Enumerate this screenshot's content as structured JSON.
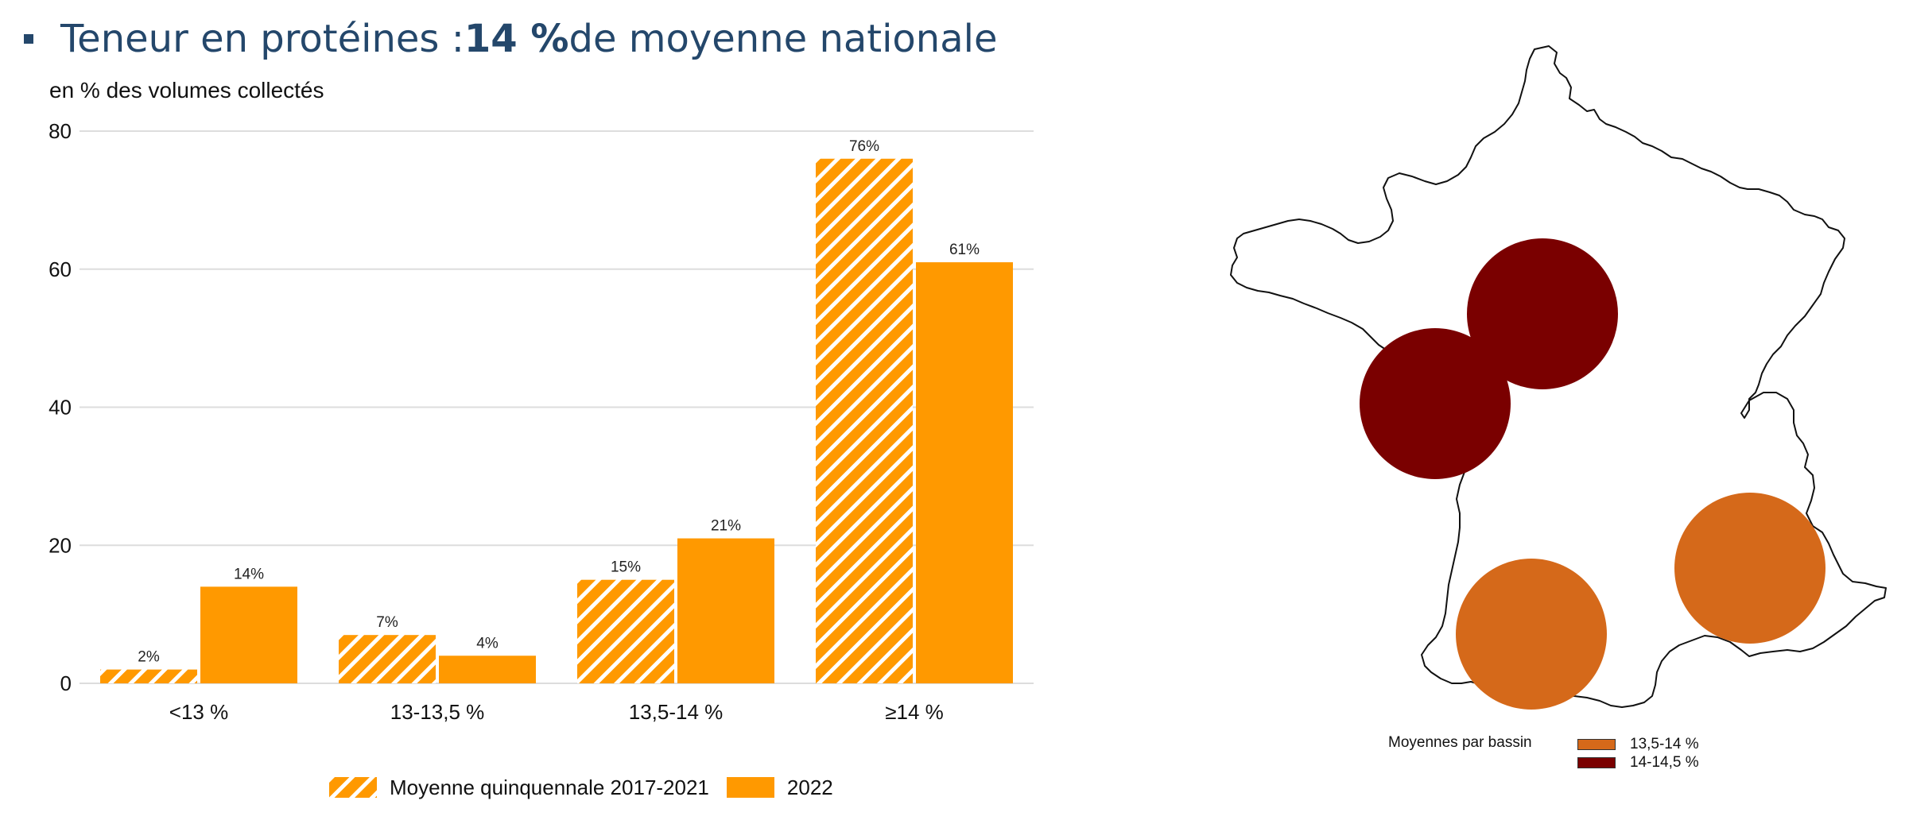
{
  "headline": {
    "prefix": "Teneur en protéines : ",
    "bold": "14 %",
    "suffix": " de moyenne nationale"
  },
  "colors": {
    "headline": "#24476b",
    "bar": "#ff9900",
    "grid": "#dddddd",
    "circle_dark": "#7a0000",
    "circle_orange": "#d5691a"
  },
  "chart_data": {
    "type": "bar",
    "title": "",
    "ylabel": "en % des volumes collectés",
    "xlabel": "",
    "ylim": [
      0,
      80
    ],
    "yticks": [
      0,
      20,
      40,
      60,
      80
    ],
    "categories": [
      "<13 %",
      "13-13,5 %",
      "13,5-14 %",
      "≥14 %"
    ],
    "series": [
      {
        "name": "Moyenne quinquennale 2017-2021",
        "pattern": "hatched",
        "values": [
          2,
          7,
          15,
          76
        ],
        "labels": [
          "2%",
          "7%",
          "15%",
          "76%"
        ]
      },
      {
        "name": "2022",
        "pattern": "solid",
        "values": [
          14,
          4,
          21,
          61
        ],
        "labels": [
          "14%",
          "4%",
          "21%",
          "61%"
        ]
      }
    ],
    "grid": true,
    "legend": "bottom"
  },
  "map": {
    "legend_title": "Moyennes par bassin",
    "classes": [
      {
        "label": "13,5-14 %",
        "color": "#d5691a"
      },
      {
        "label": "14-14,5 %",
        "color": "#7a0000"
      }
    ],
    "basins": [
      {
        "region": "north-west-centre",
        "class": "14-14,5 %"
      },
      {
        "region": "west",
        "class": "14-14,5 %"
      },
      {
        "region": "south-west",
        "class": "13,5-14 %"
      },
      {
        "region": "south-east",
        "class": "13,5-14 %"
      }
    ]
  }
}
